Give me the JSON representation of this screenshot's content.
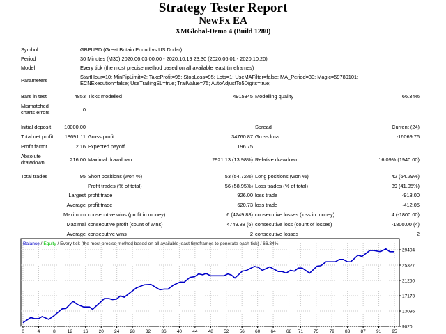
{
  "header": {
    "title": "Strategy Tester Report",
    "ea": "NewFx EA",
    "server": "XMGlobal-Demo 4 (Build 1280)"
  },
  "info": {
    "symbol_label": "Symbol",
    "symbol": "GBPUSD (Great Britain Pound vs US Dollar)",
    "period_label": "Period",
    "period": "30 Minutes (M30) 2020.06.03 00:00 - 2020.10.19 23:30 (2020.06.01 - 2020.10.20)",
    "model_label": "Model",
    "model": "Every tick (the most precise method based on all available least timeframes)",
    "params_label": "Parameters",
    "params_line1": "StartHour=10; MinPipLimit=2; TakeProfit=95; StopLoss=95; Lots=1; UseMAFilter=false; MA_Period=30; Magic=59789101;",
    "params_line2": "ECNExecution=false; UseTrailingSL=true; TrailValue=75; AutoAdjustTo5Digits=true;",
    "bars_label": "Bars in test",
    "bars": "4853",
    "ticks_label": "Ticks modelled",
    "ticks": "4915345",
    "quality_label": "Modelling quality",
    "quality": "66.34%",
    "mismatch_label1": "Mismatched",
    "mismatch_label2": "charts errors",
    "mismatch": "0"
  },
  "stats": {
    "deposit_label": "Initial deposit",
    "deposit": "10000.00",
    "spread_label": "Spread",
    "spread": "Current (24)",
    "net_label": "Total net profit",
    "net": "18691.11",
    "gross_profit_label": "Gross profit",
    "gross_profit": "34760.87",
    "gross_loss_label": "Gross loss",
    "gross_loss": "-16069.76",
    "pf_label": "Profit factor",
    "pf": "2.16",
    "payoff_label": "Expected payoff",
    "payoff": "196.75",
    "abs_dd_label1": "Absolute",
    "abs_dd_label2": "drawdown",
    "abs_dd": "216.00",
    "max_dd_label": "Maximal drawdown",
    "max_dd": "2921.13 (13.98%)",
    "rel_dd_label": "Relative drawdown",
    "rel_dd": "16.09% (1940.00)",
    "trades_label": "Total trades",
    "trades": "95",
    "short_label": "Short positions (won %)",
    "short": "53 (54.72%)",
    "long_label": "Long positions (won %)",
    "long": "42 (64.29%)",
    "ptrades_label": "Profit trades (% of total)",
    "ptrades": "56 (58.95%)",
    "ltrades_label": "Loss trades (% of total)",
    "ltrades": "39 (41.05%)",
    "largest": "Largest",
    "largest_p_label": "profit trade",
    "largest_p": "926.00",
    "largest_l_label": "loss trade",
    "largest_l": "-913.00",
    "average": "Average",
    "avg_p_label": "profit trade",
    "avg_p": "620.73",
    "avg_l_label": "loss trade",
    "avg_l": "-412.05",
    "maximum": "Maximum",
    "max_cw_label": "consecutive wins (profit in money)",
    "max_cw": "6 (4749.88)",
    "max_cl_label": "consecutive losses (loss in money)",
    "max_cl": "4 (-1800.00)",
    "maximal": "Maximal",
    "mcp_label": "consecutive profit (count of wins)",
    "mcp": "4749.88 (6)",
    "mcl_label": "consecutive loss (count of losses)",
    "mcl": "-1800.00 (4)",
    "average2": "Average",
    "acw_label": "consecutive wins",
    "acw": "2",
    "acl_label": "consecutive losses",
    "acl": "2"
  },
  "chart_legend": {
    "balance": "Balance",
    "sep1": " / ",
    "equity": "Equity",
    "rest": " / Every tick (the most precise method based on all available least timeframes to generate each tick) / 66.34%"
  },
  "chart_data": {
    "type": "line",
    "title": "Balance / Equity / Every tick (the most precise method based on all available least timeframes to generate each tick) / 66.34%",
    "ylim": [
      9020,
      29404
    ],
    "yticks": [
      "29404",
      "25327",
      "21250",
      "17173",
      "13096",
      "9020"
    ],
    "xticks": [
      "0",
      "4",
      "8",
      "12",
      "16",
      "20",
      "24",
      "28",
      "32",
      "36",
      "40",
      "44",
      "48",
      "52",
      "56",
      "60",
      "64",
      "68",
      "71",
      "75",
      "79",
      "83",
      "87",
      "91",
      "95"
    ],
    "xlim": [
      0,
      95
    ],
    "colors": {
      "balance": "#0000c8",
      "equity": "#00c800"
    },
    "series": [
      {
        "name": "Balance",
        "points": [
          [
            0,
            10000
          ],
          [
            2,
            11380
          ],
          [
            2.9,
            11070
          ],
          [
            4,
            11070
          ],
          [
            4.9,
            11630
          ],
          [
            6.6,
            10880
          ],
          [
            7.9,
            11820
          ],
          [
            10,
            13680
          ],
          [
            11,
            13800
          ],
          [
            12.8,
            15670
          ],
          [
            14,
            14800
          ],
          [
            15.5,
            14180
          ],
          [
            17,
            14180
          ],
          [
            17.8,
            13550
          ],
          [
            20.8,
            16410
          ],
          [
            22,
            16410
          ],
          [
            22.9,
            16160
          ],
          [
            23.9,
            16280
          ],
          [
            24.9,
            17100
          ],
          [
            25.9,
            16790
          ],
          [
            29,
            19270
          ],
          [
            31,
            20080
          ],
          [
            32.7,
            20200
          ],
          [
            35,
            18770
          ],
          [
            36.1,
            18960
          ],
          [
            37.1,
            18960
          ],
          [
            38.5,
            20020
          ],
          [
            40.2,
            20830
          ],
          [
            41.2,
            20770
          ],
          [
            42.7,
            22070
          ],
          [
            43.9,
            22260
          ],
          [
            44.9,
            23000
          ],
          [
            46,
            22750
          ],
          [
            46.8,
            23120
          ],
          [
            48,
            22500
          ],
          [
            51.4,
            22500
          ],
          [
            52.4,
            23000
          ],
          [
            53.3,
            22690
          ],
          [
            54.2,
            21880
          ],
          [
            56.1,
            23740
          ],
          [
            57.2,
            23930
          ],
          [
            59.2,
            24990
          ],
          [
            60.2,
            24740
          ],
          [
            61.2,
            23930
          ],
          [
            63.1,
            24870
          ],
          [
            65.3,
            23620
          ],
          [
            66.3,
            23620
          ],
          [
            67.3,
            23190
          ],
          [
            68.4,
            23930
          ],
          [
            69.4,
            23740
          ],
          [
            70.4,
            24550
          ],
          [
            71.4,
            24550
          ],
          [
            73.3,
            23190
          ],
          [
            75.2,
            25040
          ],
          [
            76.2,
            25160
          ],
          [
            77.5,
            26220
          ],
          [
            79.9,
            26220
          ],
          [
            80.9,
            26840
          ],
          [
            81.9,
            26840
          ],
          [
            83,
            26220
          ],
          [
            83.8,
            26220
          ],
          [
            85.7,
            27960
          ],
          [
            86.7,
            27650
          ],
          [
            88.7,
            29200
          ],
          [
            89.7,
            29200
          ],
          [
            91.4,
            28890
          ],
          [
            92.8,
            29640
          ],
          [
            93.8,
            28890
          ],
          [
            95,
            28890
          ]
        ]
      }
    ]
  }
}
